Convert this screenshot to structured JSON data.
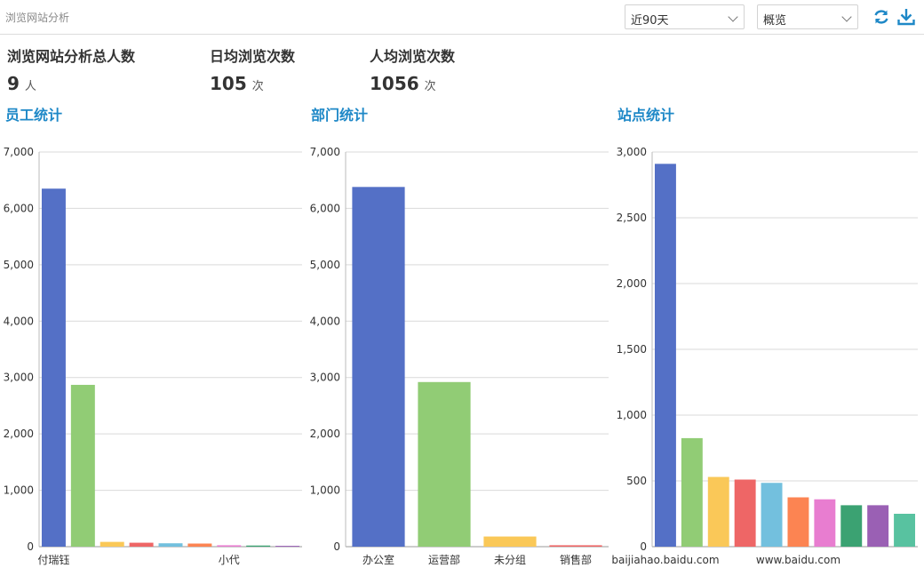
{
  "header": {
    "title": "浏览网站分析",
    "period_select": "近90天",
    "view_select": "概览",
    "icons": {
      "refresh": "refresh-icon",
      "download": "download-icon"
    }
  },
  "stats": [
    {
      "label": "浏览网站分析总人数",
      "value": "9",
      "unit": "人"
    },
    {
      "label": "日均浏览次数",
      "value": "105",
      "unit": "次"
    },
    {
      "label": "人均浏览次数",
      "value": "1056",
      "unit": "次"
    }
  ],
  "sections": {
    "employee": "员工统计",
    "department": "部门统计",
    "site": "站点统计"
  },
  "colors": {
    "accent": "#1e88c7",
    "palette": [
      "#5470c6",
      "#91cc75",
      "#fac858",
      "#ee6666",
      "#73c0de",
      "#fc8452",
      "#e87dd0",
      "#3ba272",
      "#9a60b4",
      "#58c2a0"
    ]
  },
  "chart_data": [
    {
      "type": "bar",
      "title": "员工统计",
      "categories": [
        "付瑞钰",
        "",
        "",
        "",
        "",
        "",
        "小代",
        "",
        ""
      ],
      "values": [
        6350,
        2870,
        85,
        70,
        60,
        55,
        25,
        20,
        15
      ],
      "ylim": [
        0,
        7000
      ],
      "yticks": [
        0,
        1000,
        2000,
        3000,
        4000,
        5000,
        6000,
        7000
      ],
      "ytick_labels": [
        "0",
        "1,000",
        "2,000",
        "3,000",
        "4,000",
        "5,000",
        "6,000",
        "7,000"
      ],
      "xlabel": "",
      "ylabel": ""
    },
    {
      "type": "bar",
      "title": "部门统计",
      "categories": [
        "办公室",
        "运营部",
        "未分组",
        "销售部"
      ],
      "values": [
        6380,
        2920,
        180,
        25
      ],
      "ylim": [
        0,
        7000
      ],
      "yticks": [
        0,
        1000,
        2000,
        3000,
        4000,
        5000,
        6000,
        7000
      ],
      "ytick_labels": [
        "0",
        "1,000",
        "2,000",
        "3,000",
        "4,000",
        "5,000",
        "6,000",
        "7,000"
      ],
      "xlabel": "",
      "ylabel": ""
    },
    {
      "type": "bar",
      "title": "站点统计",
      "categories": [
        "baijiahao.baidu.com",
        "",
        "",
        "",
        "",
        "www.baidu.com",
        "",
        "",
        "",
        ""
      ],
      "values": [
        2910,
        825,
        530,
        510,
        485,
        375,
        360,
        315,
        315,
        250
      ],
      "ylim": [
        0,
        3000
      ],
      "yticks": [
        0,
        500,
        1000,
        1500,
        2000,
        2500,
        3000
      ],
      "ytick_labels": [
        "0",
        "500",
        "1,000",
        "1,500",
        "2,000",
        "2,500",
        "3,000"
      ],
      "xlabel": "",
      "ylabel": ""
    }
  ]
}
